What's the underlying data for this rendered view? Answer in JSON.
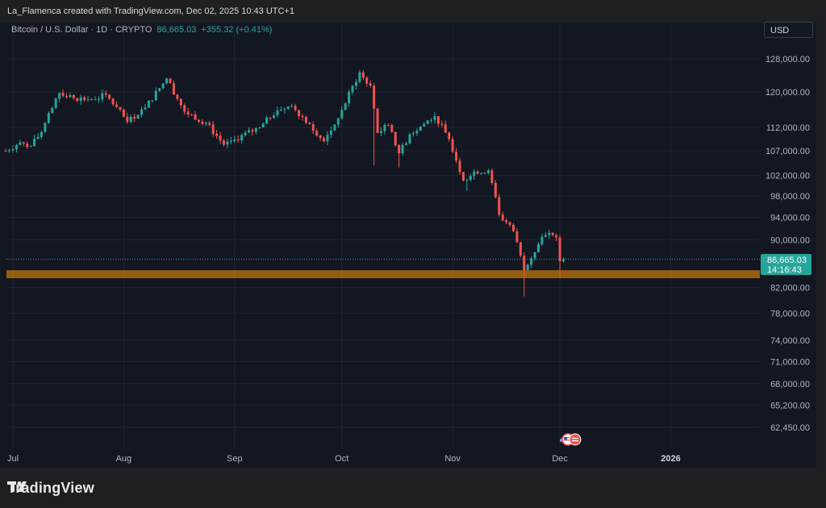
{
  "caption": "La_Flamenca created with TradingView.com, Dec 02, 2025 10:43 UTC+1",
  "symbol": {
    "title": "Bitcoin / U.S. Dollar · 1D · CRYPTO",
    "last": "86,665.03",
    "change": "+355.32 (+0.41%)"
  },
  "currency_label": "USD",
  "price_tag": {
    "price": "86,665.03",
    "countdown": "14:16:43"
  },
  "brand": {
    "name": "TradingView"
  },
  "colors": {
    "up": "#26a69a",
    "down": "#ef5350",
    "zone": "#ff9800",
    "background": "#131722"
  },
  "chart_data": {
    "type": "candlestick",
    "symbol": "BTCUSD",
    "interval": "1D",
    "y_ticks": [
      "128,000.00",
      "120,000.00",
      "112,000.00",
      "107,000.00",
      "102,000.00",
      "98,000.00",
      "94,000.00",
      "90,000.00",
      "82,000.00",
      "78,000.00",
      "74,000.00",
      "71,000.00",
      "68,000.00",
      "65,200.00",
      "62,450.00"
    ],
    "x_ticks": [
      "Jul",
      "Aug",
      "Sep",
      "Oct",
      "Nov",
      "Dec",
      "2026"
    ],
    "y_scale": "log",
    "ylim": [
      60000,
      136000
    ],
    "grid": true,
    "last_price": 86665.03,
    "support_zone": {
      "low": 83500,
      "high": 84800
    },
    "anchors": [
      {
        "date": "2025-06-29",
        "price": 107000
      },
      {
        "date": "2025-07-03",
        "price": 108800
      },
      {
        "date": "2025-07-06",
        "price": 108000
      },
      {
        "date": "2025-07-09",
        "price": 111000
      },
      {
        "date": "2025-07-14",
        "price": 119800
      },
      {
        "date": "2025-07-18",
        "price": 118600
      },
      {
        "date": "2025-07-24",
        "price": 118300
      },
      {
        "date": "2025-07-27",
        "price": 119400
      },
      {
        "date": "2025-08-02",
        "price": 113200
      },
      {
        "date": "2025-08-07",
        "price": 116400
      },
      {
        "date": "2025-08-13",
        "price": 123200
      },
      {
        "date": "2025-08-18",
        "price": 115500
      },
      {
        "date": "2025-08-24",
        "price": 113000
      },
      {
        "date": "2025-08-29",
        "price": 108300
      },
      {
        "date": "2025-09-01",
        "price": 109400
      },
      {
        "date": "2025-09-08",
        "price": 112000
      },
      {
        "date": "2025-09-13",
        "price": 115800
      },
      {
        "date": "2025-09-17",
        "price": 116800
      },
      {
        "date": "2025-09-22",
        "price": 112700
      },
      {
        "date": "2025-09-26",
        "price": 109000
      },
      {
        "date": "2025-09-30",
        "price": 114000
      },
      {
        "date": "2025-10-06",
        "price": 124700
      },
      {
        "date": "2025-10-09",
        "price": 121500
      },
      {
        "date": "2025-10-11",
        "price": 110800
      },
      {
        "date": "2025-10-14",
        "price": 112500
      },
      {
        "date": "2025-10-17",
        "price": 106500
      },
      {
        "date": "2025-10-20",
        "price": 110500
      },
      {
        "date": "2025-10-27",
        "price": 114500
      },
      {
        "date": "2025-10-31",
        "price": 109500
      },
      {
        "date": "2025-11-04",
        "price": 101000
      },
      {
        "date": "2025-11-07",
        "price": 102800
      },
      {
        "date": "2025-11-11",
        "price": 103000
      },
      {
        "date": "2025-11-14",
        "price": 94500
      },
      {
        "date": "2025-11-18",
        "price": 91500
      },
      {
        "date": "2025-11-21",
        "price": 84800
      },
      {
        "date": "2025-11-23",
        "price": 86800
      },
      {
        "date": "2025-11-26",
        "price": 90500
      },
      {
        "date": "2025-11-29",
        "price": 90800
      },
      {
        "date": "2025-11-30",
        "price": 90400
      },
      {
        "date": "2025-12-01",
        "price": 86300
      },
      {
        "date": "2025-12-02",
        "price": 86665
      }
    ]
  }
}
